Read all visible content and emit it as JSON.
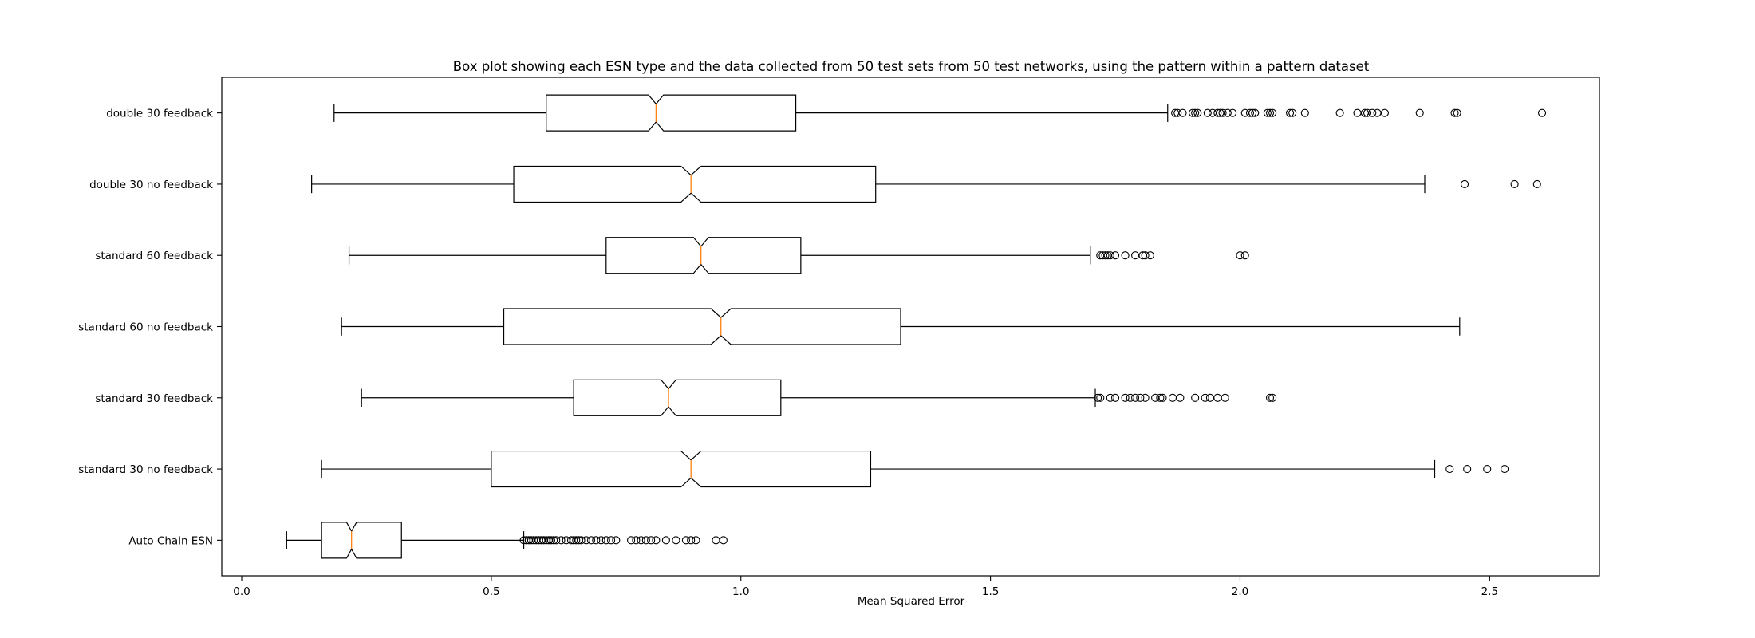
{
  "chart_data": {
    "type": "boxplot",
    "orientation": "horizontal",
    "notched": true,
    "title": "Box plot showing each ESN type and the data collected from 50 test sets from 50 test networks, using the pattern within a pattern dataset",
    "xlabel": "Mean Squared Error",
    "ylabel": "",
    "xlim": [
      -0.04,
      2.72
    ],
    "xticks": [
      0.0,
      0.5,
      1.0,
      1.5,
      2.0,
      2.5
    ],
    "xtick_labels": [
      "0.0",
      "0.5",
      "1.0",
      "1.5",
      "2.0",
      "2.5"
    ],
    "grid": false,
    "median_color": "#ff7f0e",
    "line_color": "#000000",
    "categories": [
      "Auto Chain ESN",
      "standard 30 no feedback",
      "standard 30 feedback",
      "standard 60 no feedback",
      "standard 60 feedback",
      "double 30 no feedback",
      "double 30 feedback"
    ],
    "boxes": [
      {
        "name": "Auto Chain ESN",
        "whisker_low": 0.09,
        "q1": 0.16,
        "median": 0.22,
        "q3": 0.32,
        "whisker_high": 0.565,
        "notch_low": 0.21,
        "notch_high": 0.23,
        "outliers": [
          0.565,
          0.57,
          0.575,
          0.58,
          0.585,
          0.59,
          0.595,
          0.6,
          0.605,
          0.61,
          0.615,
          0.62,
          0.625,
          0.63,
          0.64,
          0.65,
          0.66,
          0.665,
          0.67,
          0.675,
          0.68,
          0.69,
          0.7,
          0.71,
          0.72,
          0.73,
          0.74,
          0.75,
          0.78,
          0.79,
          0.8,
          0.81,
          0.82,
          0.83,
          0.85,
          0.87,
          0.89,
          0.9,
          0.91,
          0.95,
          0.965
        ]
      },
      {
        "name": "standard 30 no feedback",
        "whisker_low": 0.16,
        "q1": 0.5,
        "median": 0.9,
        "q3": 1.26,
        "whisker_high": 2.39,
        "notch_low": 0.88,
        "notch_high": 0.92,
        "outliers": [
          2.42,
          2.455,
          2.495,
          2.53
        ]
      },
      {
        "name": "standard 30 feedback",
        "whisker_low": 0.24,
        "q1": 0.665,
        "median": 0.855,
        "q3": 1.08,
        "whisker_high": 1.71,
        "notch_low": 0.84,
        "notch_high": 0.87,
        "outliers": [
          1.715,
          1.72,
          1.74,
          1.75,
          1.77,
          1.78,
          1.79,
          1.8,
          1.81,
          1.83,
          1.84,
          1.845,
          1.865,
          1.88,
          1.91,
          1.93,
          1.94,
          1.955,
          1.97,
          2.06,
          2.065
        ]
      },
      {
        "name": "standard 60 no feedback",
        "whisker_low": 0.2,
        "q1": 0.525,
        "median": 0.96,
        "q3": 1.32,
        "whisker_high": 2.44,
        "notch_low": 0.94,
        "notch_high": 0.98,
        "outliers": []
      },
      {
        "name": "standard 60 feedback",
        "whisker_low": 0.215,
        "q1": 0.73,
        "median": 0.92,
        "q3": 1.12,
        "whisker_high": 1.7,
        "notch_low": 0.905,
        "notch_high": 0.935,
        "outliers": [
          1.72,
          1.725,
          1.73,
          1.735,
          1.74,
          1.75,
          1.77,
          1.79,
          1.805,
          1.81,
          1.82,
          2.0,
          2.01
        ]
      },
      {
        "name": "double 30 no feedback",
        "whisker_low": 0.14,
        "q1": 0.545,
        "median": 0.9,
        "q3": 1.27,
        "whisker_high": 2.37,
        "notch_low": 0.88,
        "notch_high": 0.92,
        "outliers": [
          2.45,
          2.55,
          2.595
        ]
      },
      {
        "name": "double 30 feedback",
        "whisker_low": 0.185,
        "q1": 0.61,
        "median": 0.83,
        "q3": 1.11,
        "whisker_high": 1.855,
        "notch_low": 0.815,
        "notch_high": 0.845,
        "outliers": [
          1.87,
          1.875,
          1.885,
          1.905,
          1.91,
          1.915,
          1.935,
          1.945,
          1.955,
          1.96,
          1.965,
          1.975,
          1.985,
          2.01,
          2.02,
          2.025,
          2.03,
          2.055,
          2.06,
          2.065,
          2.1,
          2.105,
          2.13,
          2.2,
          2.235,
          2.25,
          2.255,
          2.265,
          2.275,
          2.29,
          2.36,
          2.43,
          2.435,
          2.605
        ]
      }
    ]
  }
}
